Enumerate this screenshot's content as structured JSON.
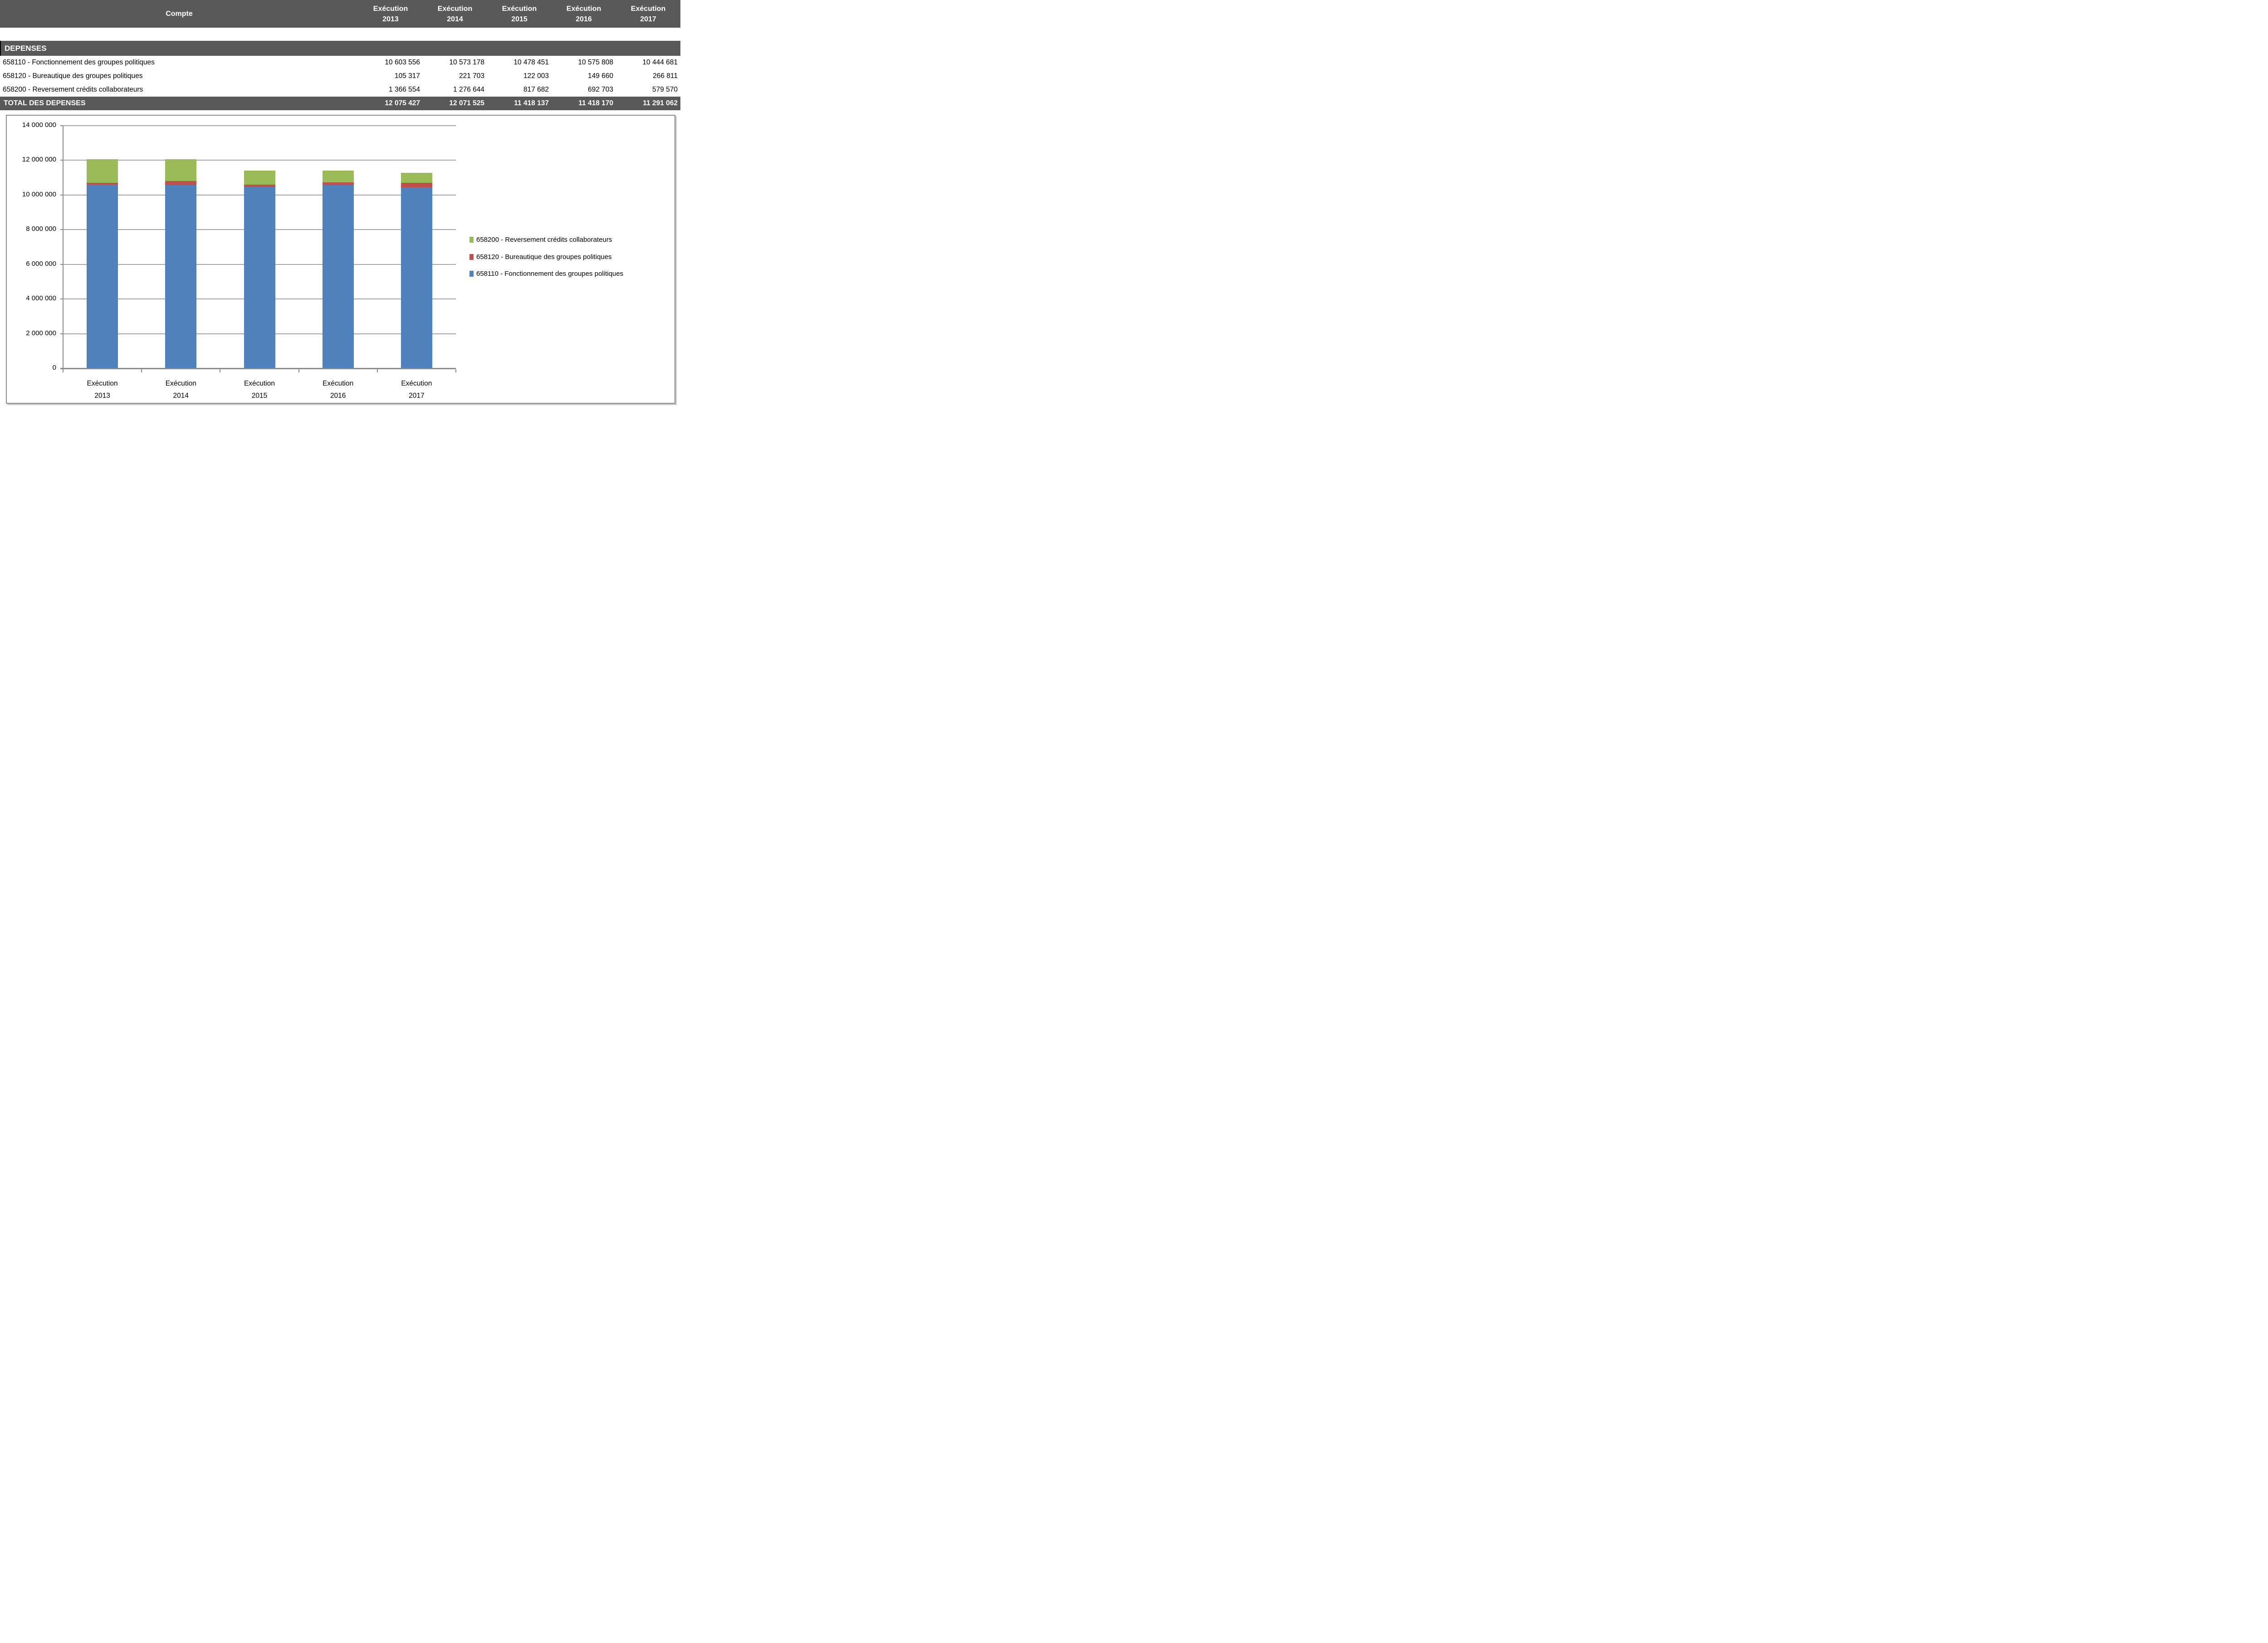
{
  "table": {
    "header": {
      "compte_label": "Compte",
      "columns": [
        {
          "line1": "Exécution",
          "line2": "2013"
        },
        {
          "line1": "Exécution",
          "line2": "2014"
        },
        {
          "line1": "Exécution",
          "line2": "2015"
        },
        {
          "line1": "Exécution",
          "line2": "2016"
        },
        {
          "line1": "Exécution",
          "line2": "2017"
        }
      ]
    },
    "section_label": "DEPENSES",
    "rows": [
      {
        "label": "658110 - Fonctionnement des groupes politiques",
        "values": [
          "10 603 556",
          "10 573 178",
          "10 478 451",
          "10 575 808",
          "10 444 681"
        ]
      },
      {
        "label": "658120 - Bureautique des groupes politiques",
        "values": [
          "105 317",
          "221 703",
          "122 003",
          "149 660",
          "266 811"
        ]
      },
      {
        "label": "658200 - Reversement crédits collaborateurs",
        "values": [
          "1 366 554",
          "1 276 644",
          "817 682",
          "692 703",
          "579 570"
        ]
      }
    ],
    "total": {
      "label": "TOTAL DES DEPENSES",
      "values": [
        "12 075 427",
        "12 071 525",
        "11 418 137",
        "11 418 170",
        "11 291 062"
      ]
    }
  },
  "chart_data": {
    "type": "bar",
    "stacked": true,
    "title": "",
    "xlabel": "",
    "ylabel": "",
    "categories": [
      "Exécution 2013",
      "Exécution 2014",
      "Exécution 2015",
      "Exécution 2016",
      "Exécution 2017"
    ],
    "series": [
      {
        "name": "658110 - Fonctionnement des groupes politiques",
        "color": "#4F81BD",
        "values": [
          10603556,
          10573178,
          10478451,
          10575808,
          10444681
        ]
      },
      {
        "name": "658120 - Bureautique des groupes politiques",
        "color": "#C0504D",
        "values": [
          105317,
          221703,
          122003,
          149660,
          266811
        ]
      },
      {
        "name": "658200 - Reversement crédits collaborateurs",
        "color": "#9BBB59",
        "values": [
          1366554,
          1276644,
          817682,
          692703,
          579570
        ]
      }
    ],
    "totals": [
      12075427,
      12071525,
      11418137,
      11418170,
      11291062
    ],
    "ylim": [
      0,
      14000000
    ],
    "ytick_step": 2000000,
    "ytick_labels": [
      "0",
      "2 000 000",
      "4 000 000",
      "6 000 000",
      "8 000 000",
      "10 000 000",
      "12 000 000",
      "14 000 000"
    ],
    "grid": true,
    "legend_position": "right",
    "legend_order": "reversed"
  },
  "colors": {
    "band_bg": "#595959",
    "band_text": "#FFFFFF",
    "body_text": "#000000",
    "grid_line": "#A6A6A6",
    "axis_line": "#8C8C8C",
    "chart_border": "#8C8C8C",
    "series_blue": "#4F81BD",
    "series_red": "#C0504D",
    "series_green": "#9BBB59"
  }
}
